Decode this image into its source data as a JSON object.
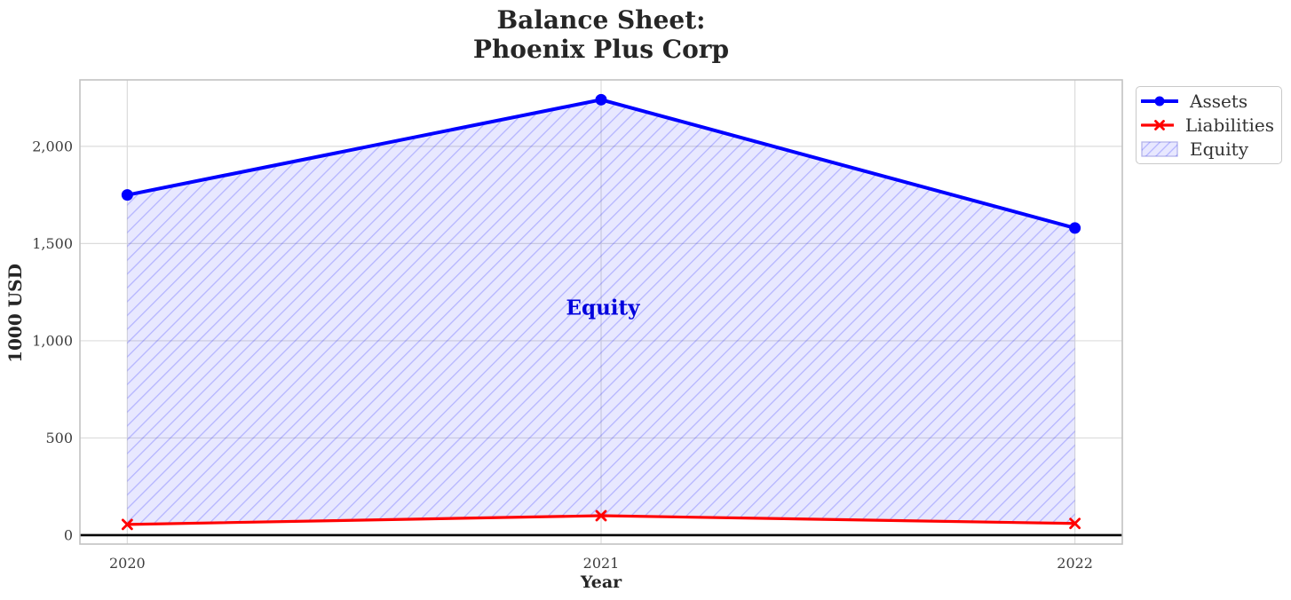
{
  "title": {
    "line1": "Balance Sheet:",
    "line2": "Phoenix Plus Corp"
  },
  "legend": {
    "items": [
      "Assets",
      "Liabilities",
      "Equity"
    ]
  },
  "chart_data": {
    "type": "line",
    "title": "Balance Sheet:\nPhoenix Plus Corp",
    "xlabel": "Year",
    "ylabel": "1000 USD",
    "x": [
      2020,
      2021,
      2022
    ],
    "x_tick_labels": [
      "2020",
      "2021",
      "2022"
    ],
    "y_ticks": [
      0,
      500,
      1000,
      1500,
      2000
    ],
    "y_tick_labels": [
      "0",
      "500",
      "1,000",
      "1,500",
      "2,000"
    ],
    "series": [
      {
        "name": "Assets",
        "values": [
          1750,
          2240,
          1580
        ],
        "marker": "circle"
      },
      {
        "name": "Liabilities",
        "values": [
          55,
          100,
          60
        ],
        "marker": "x"
      }
    ],
    "fill_between": {
      "name": "Equity",
      "upper": "Assets",
      "lower": "Liabilities",
      "hatch": "//"
    },
    "annotation": {
      "text": "Equity",
      "x": 2021,
      "y": 1170
    },
    "xlim": [
      2019.9,
      2022.1
    ],
    "ylim": [
      -46,
      2342
    ],
    "grid": true,
    "zero_line": true,
    "legend_position": "upper right, outside axes",
    "colors": {
      "assets": "#0000ff",
      "liabilities": "#ff0000",
      "fill": "rgba(0,0,255,0.09)",
      "hatch": "rgba(0,0,255,0.22)",
      "grid": "#dcdcdc",
      "spine": "#c2c2c2",
      "zero_line": "#000000",
      "tick_text": "#3d3d3d",
      "label_text": "#262626",
      "annotation": "#0000dd"
    }
  }
}
